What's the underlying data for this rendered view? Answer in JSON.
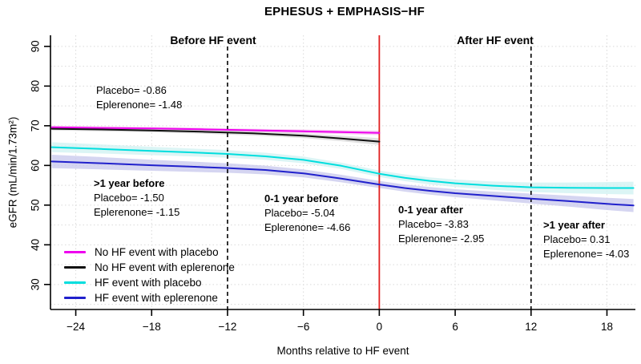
{
  "title": "EPHESUS + EMPHASIS−HF",
  "chart_data": {
    "type": "line",
    "title": "EPHESUS + EMPHASIS−HF",
    "xlabel": "Months relative to HF event",
    "ylabel": "eGFR (mL/min/1.73m²)",
    "xlim": [
      -26.0,
      20.25
    ],
    "ylim": [
      23.7,
      92.8
    ],
    "x_ticks": [
      -24,
      -18,
      -12,
      -6,
      0,
      6,
      12,
      18
    ],
    "y_ticks": [
      30,
      40,
      50,
      60,
      70,
      80,
      90
    ],
    "grid": {
      "x_every": [
        -24,
        -18,
        -12,
        -6,
        6,
        12,
        18
      ],
      "y_every": [
        25,
        30,
        35,
        40,
        45,
        50,
        55,
        60,
        65,
        70,
        75,
        80,
        85,
        90
      ],
      "color": "#d9d9d9"
    },
    "event_line": {
      "x": 0,
      "color": "#e02020"
    },
    "period_lines": [
      {
        "x": -12,
        "color": "#000000"
      },
      {
        "x": 12,
        "color": "#000000"
      }
    ],
    "region_labels": [
      {
        "text": "Before HF event"
      },
      {
        "text": "After HF event"
      }
    ],
    "series": [
      {
        "name": "No HF event with placebo",
        "color": "#ee00ee",
        "band_color": "#f6c2ef",
        "x": [
          -25.9,
          -22,
          -18,
          -14,
          -10,
          -6,
          -3,
          0
        ],
        "y": [
          69.6,
          69.45,
          69.3,
          69.1,
          68.85,
          68.6,
          68.4,
          68.2
        ],
        "hw": [
          0.4,
          0.4,
          0.4,
          0.4,
          0.4,
          0.45,
          0.5,
          0.55
        ]
      },
      {
        "name": "No HF event with eplerenone",
        "color": "#111111",
        "band_color": "#d8d8d8",
        "x": [
          -25.9,
          -22,
          -18,
          -14,
          -10,
          -6,
          -3,
          0
        ],
        "y": [
          69.25,
          69.05,
          68.8,
          68.5,
          68.1,
          67.5,
          66.8,
          66.0
        ],
        "hw": [
          0.45,
          0.45,
          0.45,
          0.5,
          0.55,
          0.6,
          0.7,
          0.85
        ]
      },
      {
        "name": "HF event with placebo",
        "color": "#00dede",
        "band_color": "#d2f3f3",
        "x": [
          -25.9,
          -22,
          -18,
          -15,
          -12,
          -9,
          -6,
          -3,
          0,
          2,
          4,
          6,
          9,
          12,
          15,
          18,
          20.1
        ],
        "y": [
          64.6,
          64.15,
          63.65,
          63.3,
          62.9,
          62.3,
          61.4,
          59.9,
          57.9,
          56.9,
          56.1,
          55.5,
          54.9,
          54.5,
          54.35,
          54.3,
          54.3
        ],
        "hw": [
          1.25,
          1.15,
          1.05,
          1.0,
          0.95,
          0.9,
          0.85,
          0.8,
          0.8,
          0.85,
          0.9,
          0.95,
          1.05,
          1.2,
          1.35,
          1.5,
          1.6
        ]
      },
      {
        "name": "HF event with eplerenone",
        "color": "#2121cc",
        "band_color": "#cbcbee",
        "x": [
          -25.9,
          -22,
          -18,
          -15,
          -12,
          -9,
          -6,
          -3,
          0,
          2,
          4,
          6,
          9,
          12,
          15,
          18,
          20.1
        ],
        "y": [
          61.0,
          60.55,
          60.05,
          59.7,
          59.35,
          58.85,
          58.0,
          56.7,
          55.2,
          54.3,
          53.6,
          53.0,
          52.3,
          51.65,
          51.0,
          50.3,
          49.9
        ],
        "hw": [
          1.7,
          1.55,
          1.4,
          1.3,
          1.2,
          1.1,
          1.0,
          0.95,
          0.9,
          0.9,
          0.95,
          1.0,
          1.1,
          1.25,
          1.4,
          1.55,
          1.65
        ]
      }
    ],
    "annotations": [
      {
        "heading": "",
        "line1": "Placebo= -0.86",
        "line2": "Eplerenone= -1.48"
      },
      {
        "heading": ">1 year before",
        "line1": "Placebo= -1.50",
        "line2": "Eplerenone= -1.15"
      },
      {
        "heading": "0-1 year before",
        "line1": "Placebo= -5.04",
        "line2": "Eplerenone= -4.66"
      },
      {
        "heading": "0-1 year after",
        "line1": "Placebo= -3.83",
        "line2": "Eplerenone= -2.95"
      },
      {
        "heading": ">1 year after",
        "line1": "Placebo= 0.31",
        "line2": "Eplerenone= -4.03"
      }
    ],
    "legend_position": "bottom-left"
  }
}
